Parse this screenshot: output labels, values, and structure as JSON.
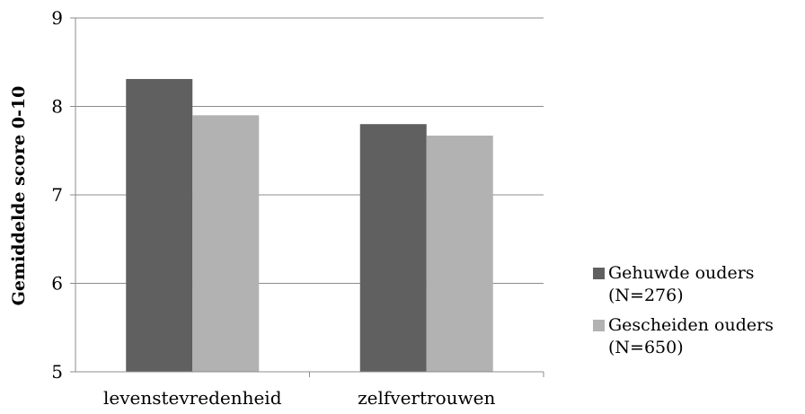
{
  "chart_data": {
    "type": "bar",
    "categories": [
      "levenstevredenheid",
      "zelfvertrouwen"
    ],
    "series": [
      {
        "name": "Gehuwde ouders (N=276)",
        "values": [
          8.31,
          7.8
        ],
        "color": "#606060"
      },
      {
        "name": "Gescheiden ouders (N=650)",
        "values": [
          7.9,
          7.67
        ],
        "color": "#b2b2b2"
      }
    ],
    "ylabel": "Gemiddelde score 0-10",
    "ylim": [
      5,
      9
    ],
    "yticks": [
      "5",
      "6",
      "7",
      "8",
      "9"
    ],
    "grid": true,
    "legend": "right"
  }
}
